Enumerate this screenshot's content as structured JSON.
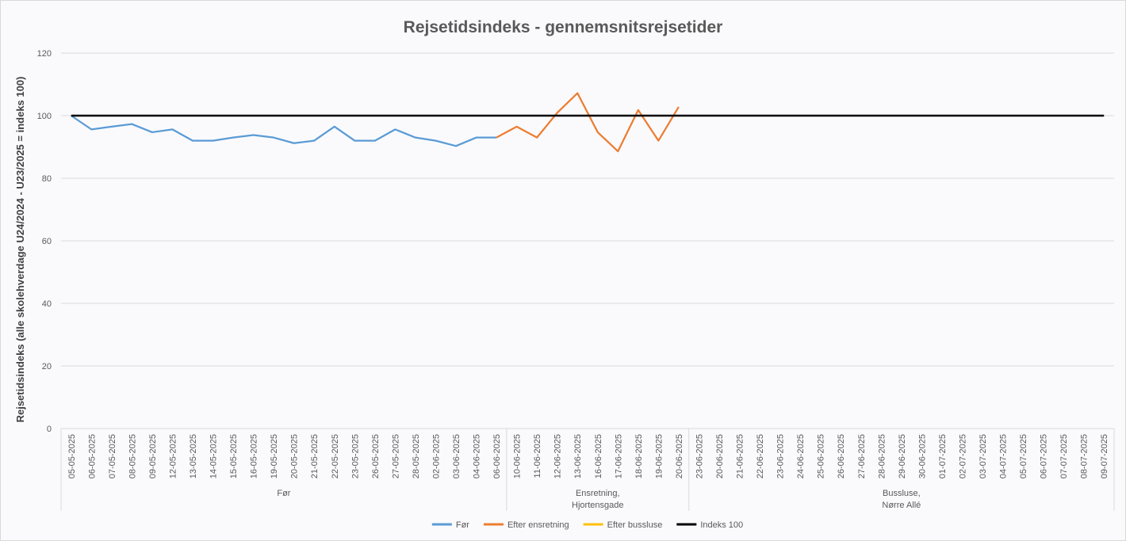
{
  "chart_data": {
    "type": "line",
    "title": "Rejsetidsindeks - gennemsnitsrejsetider",
    "y_label": "Rejsetidsindeks (alle skolehverdage U24/2024 - U23/2025 = indeks 100)",
    "groups": [
      {
        "label": [
          "Før"
        ],
        "categories": [
          "05-05-2025",
          "06-05-2025",
          "07-05-2025",
          "08-05-2025",
          "09-05-2025",
          "12-05-2025",
          "13-05-2025",
          "14-05-2025",
          "15-05-2025",
          "16-05-2025",
          "19-05-2025",
          "20-05-2025",
          "21-05-2025",
          "22-05-2025",
          "23-05-2025",
          "26-05-2025",
          "27-05-2025",
          "28-05-2025",
          "02-06-2025",
          "03-06-2025",
          "04-06-2025",
          "06-06-2025"
        ]
      },
      {
        "label": [
          "Ensretning,",
          "Hjortensgade"
        ],
        "categories": [
          "10-06-2025",
          "11-06-2025",
          "12-06-2025",
          "13-06-2025",
          "16-06-2025",
          "17-06-2025",
          "18-06-2025",
          "19-06-2025",
          "20-06-2025"
        ]
      },
      {
        "label": [
          "Bussluse,",
          "Nørre Allé"
        ],
        "categories": [
          "23-06-2025",
          "20-06-2025",
          "21-06-2025",
          "22-06-2025",
          "23-06-2025",
          "24-06-2025",
          "25-06-2025",
          "26-06-2025",
          "27-06-2025",
          "28-06-2025",
          "29-06-2025",
          "30-06-2025",
          "01-07-2025",
          "02-07-2025",
          "03-07-2025",
          "04-07-2025",
          "05-07-2025",
          "06-07-2025",
          "07-07-2025",
          "08-07-2025",
          "09-07-2025"
        ]
      }
    ],
    "series": [
      {
        "name": "Før",
        "color": "#5b9bd5",
        "values": [
          100,
          95.6,
          96.5,
          97.3,
          94.7,
          95.6,
          92,
          92,
          93,
          93.8,
          93,
          91.2,
          92,
          96.5,
          92,
          92,
          95.6,
          93,
          92,
          90.3,
          93,
          93,
          null,
          null,
          null,
          null,
          null,
          null,
          null,
          null,
          null,
          null,
          null,
          null,
          null,
          null,
          null,
          null,
          null,
          null,
          null,
          null,
          null,
          null,
          null,
          null,
          null,
          null,
          null,
          null,
          null,
          null
        ]
      },
      {
        "name": "Efter ensretning",
        "color": "#ed7d31",
        "values": [
          null,
          null,
          null,
          null,
          null,
          null,
          null,
          null,
          null,
          null,
          null,
          null,
          null,
          null,
          null,
          null,
          null,
          null,
          null,
          null,
          null,
          93,
          96.5,
          93,
          100.9,
          107.2,
          94.7,
          88.6,
          101.8,
          92,
          102.8,
          null,
          null,
          null,
          null,
          null,
          null,
          null,
          null,
          null,
          null,
          null,
          null,
          null,
          null,
          null,
          null,
          null,
          null,
          null,
          null,
          null
        ]
      },
      {
        "name": "Efter bussluse",
        "color": "#ffc000",
        "values": [
          null,
          null,
          null,
          null,
          null,
          null,
          null,
          null,
          null,
          null,
          null,
          null,
          null,
          null,
          null,
          null,
          null,
          null,
          null,
          null,
          null,
          null,
          null,
          null,
          null,
          null,
          null,
          null,
          null,
          null,
          null,
          null,
          null,
          null,
          null,
          null,
          null,
          null,
          null,
          null,
          null,
          null,
          null,
          null,
          null,
          null,
          null,
          null,
          null,
          null,
          null,
          null
        ]
      },
      {
        "name": "Indeks 100",
        "color": "#000000",
        "values": [
          100,
          100,
          100,
          100,
          100,
          100,
          100,
          100,
          100,
          100,
          100,
          100,
          100,
          100,
          100,
          100,
          100,
          100,
          100,
          100,
          100,
          100,
          100,
          100,
          100,
          100,
          100,
          100,
          100,
          100,
          100,
          100,
          100,
          100,
          100,
          100,
          100,
          100,
          100,
          100,
          100,
          100,
          100,
          100,
          100,
          100,
          100,
          100,
          100,
          100,
          100,
          100
        ]
      }
    ],
    "ylim": [
      0,
      120
    ],
    "yticks": [
      0,
      20,
      40,
      60,
      80,
      100,
      120
    ],
    "grid": true,
    "legend": "bottom"
  }
}
